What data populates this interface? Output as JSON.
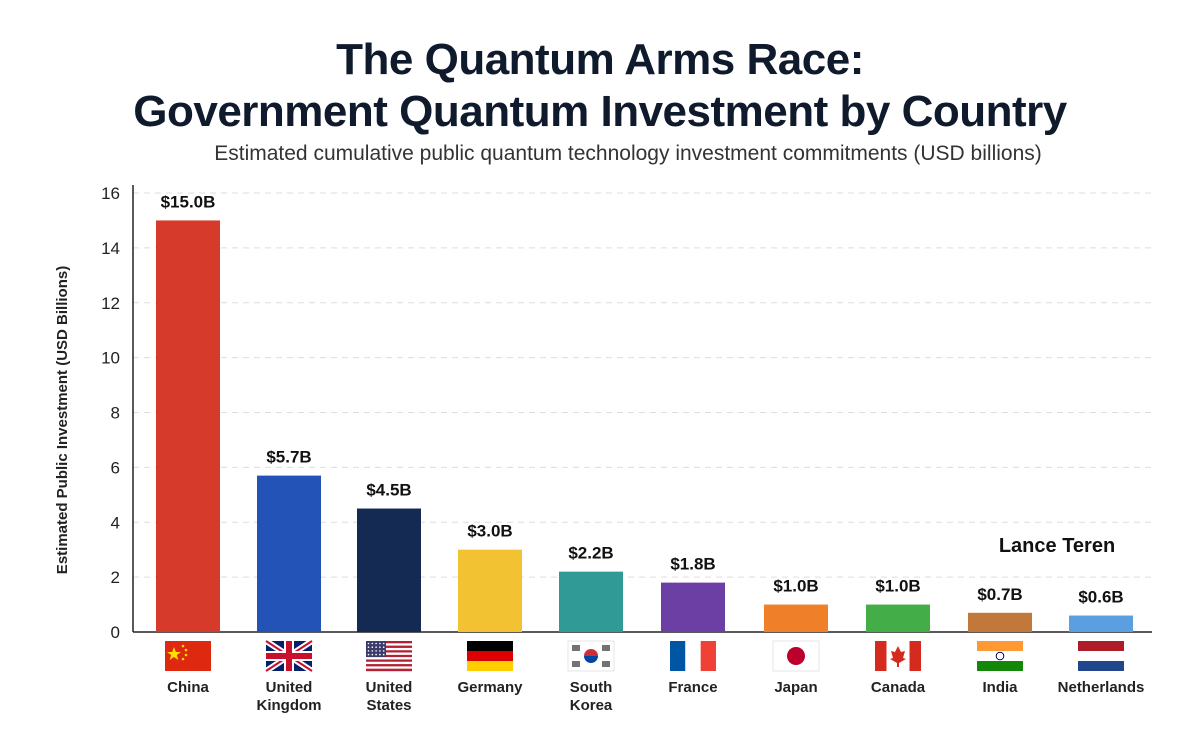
{
  "chart_data": {
    "type": "bar",
    "title": "The Quantum Arms Race:",
    "title_line2": "Government Quantum Investment by Country",
    "subtitle": "Estimated cumulative public quantum technology investment commitments (USD billions)",
    "ylabel": "Estimated Public Investment (USD Billions)",
    "xlabel": "",
    "ylim": [
      0,
      16
    ],
    "yticks": [
      0,
      2,
      4,
      6,
      8,
      10,
      12,
      14,
      16
    ],
    "grid": true,
    "categories": [
      [
        "China"
      ],
      [
        "United",
        "Kingdom"
      ],
      [
        "United",
        "States"
      ],
      [
        "Germany"
      ],
      [
        "South",
        "Korea"
      ],
      [
        "France"
      ],
      [
        "Japan"
      ],
      [
        "Canada"
      ],
      [
        "India"
      ],
      [
        "Netherlands"
      ]
    ],
    "values": [
      15.0,
      5.7,
      4.5,
      3.0,
      2.2,
      1.8,
      1.0,
      1.0,
      0.7,
      0.6
    ],
    "data_labels": [
      "$15.0B",
      "$5.7B",
      "$4.5B",
      "$3.0B",
      "$2.2B",
      "$1.8B",
      "$1.0B",
      "$1.0B",
      "$0.7B",
      "$0.6B"
    ],
    "colors": [
      "#d63a2a",
      "#2453b8",
      "#142a52",
      "#f2c232",
      "#2f9a96",
      "#6b3fa3",
      "#f07f2a",
      "#43ad48",
      "#c1783a",
      "#5b9fe0"
    ],
    "flags": [
      "china-flag",
      "uk-flag",
      "us-flag",
      "germany-flag",
      "south-korea-flag",
      "france-flag",
      "japan-flag",
      "canada-flag",
      "india-flag",
      "netherlands-flag"
    ],
    "annotation": "Lance Teren"
  }
}
